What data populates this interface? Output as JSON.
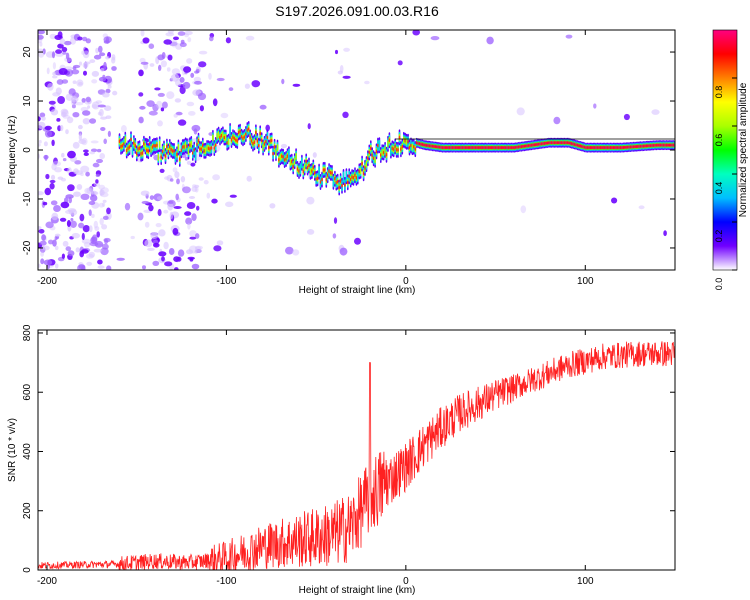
{
  "title": "S197.2026.091.00.03.R16",
  "chart_data": [
    {
      "type": "heatmap",
      "xlabel": "Height of straight line (km)",
      "ylabel": "Frequency (Hz)",
      "xlim": [
        -205,
        150
      ],
      "ylim": [
        -24.5,
        24.5
      ],
      "xticks": [
        -200,
        -100,
        0,
        100
      ],
      "yticks": [
        -20,
        -10,
        0,
        10,
        20
      ],
      "colorbar": {
        "label": "Normalized spectral amplitude",
        "range": [
          0,
          1
        ],
        "ticks": [
          0.0,
          0.2,
          0.4,
          0.6,
          0.8
        ],
        "tick_labels": [
          "0.0",
          "0.2",
          "0.4",
          "0.6",
          "0.8"
        ],
        "stops": [
          "#ffffff",
          "#7000ff",
          "#0000ff",
          "#00bfff",
          "#00ffbf",
          "#00ff00",
          "#aaff00",
          "#ffff00",
          "#ff8000",
          "#ff0000",
          "#ff0080"
        ]
      },
      "ridge": {
        "x": [
          -160,
          -150,
          -140,
          -130,
          -120,
          -110,
          -100,
          -90,
          -80,
          -70,
          -60,
          -50,
          -40,
          -30,
          -20,
          -10,
          0,
          10,
          20,
          40,
          60,
          80,
          90,
          100,
          120,
          140,
          150
        ],
        "freq": [
          1.5,
          0.5,
          0,
          -1,
          0,
          1,
          2.5,
          3,
          2,
          -1,
          -3,
          -5,
          -6,
          -7,
          -1,
          0.5,
          2,
          1,
          0.5,
          0.5,
          0.5,
          1.5,
          1.5,
          0.5,
          0.5,
          1.0,
          1.0
        ]
      },
      "trace_start_x": -160
    },
    {
      "type": "line",
      "xlabel": "Height of straight line (km)",
      "ylabel": "SNR (10 * v/v)",
      "xlim": [
        -205,
        150
      ],
      "ylim": [
        0,
        810
      ],
      "xticks": [
        -200,
        -100,
        0,
        100
      ],
      "yticks": [
        0,
        200,
        400,
        600,
        800
      ],
      "color": "#ff2020",
      "trend": {
        "x": [
          -205,
          -160,
          -140,
          -120,
          -100,
          -80,
          -60,
          -40,
          -30,
          -20,
          -10,
          0,
          10,
          20,
          30,
          50,
          70,
          90,
          110,
          130,
          150
        ],
        "y": [
          15,
          20,
          30,
          25,
          40,
          80,
          100,
          120,
          150,
          250,
          300,
          350,
          420,
          480,
          530,
          590,
          640,
          690,
          720,
          730,
          730
        ]
      },
      "spike": {
        "x": -20,
        "y": 700
      }
    }
  ]
}
